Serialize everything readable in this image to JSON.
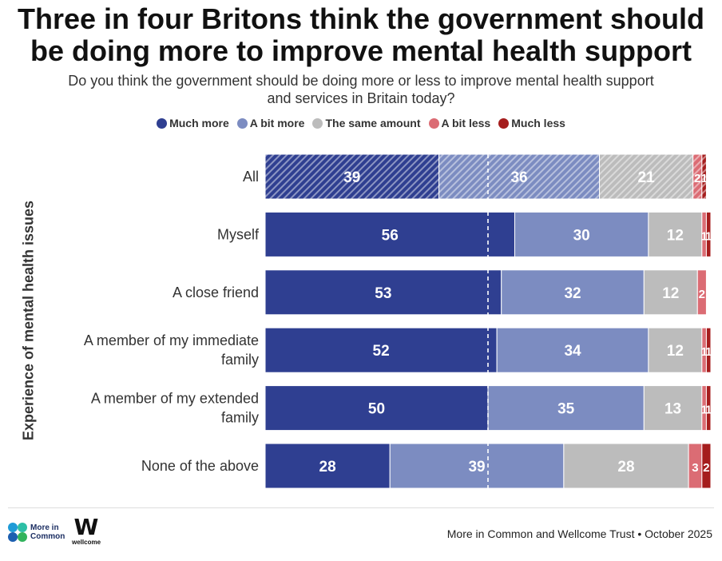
{
  "title_lines": [
    "Three in four Britons think the government should",
    "be doing more to improve mental health support"
  ],
  "subtitle_lines": [
    "Do you think the government should be doing more or less to improve mental health support",
    "and services in Britain today?"
  ],
  "legend": [
    {
      "label": "Much more",
      "color": "#2f3f91"
    },
    {
      "label": "A bit more",
      "color": "#7c8cc1"
    },
    {
      "label": "The same amount",
      "color": "#bcbcbc"
    },
    {
      "label": "A bit less",
      "color": "#db6c74"
    },
    {
      "label": "Much less",
      "color": "#a51d1d"
    }
  ],
  "y_axis_title": "Experience of mental health issues",
  "chart_data": {
    "type": "bar",
    "orientation": "horizontal",
    "stacked": true,
    "categories": [
      "All",
      "Myself",
      "A close friend",
      "A member of my immediate family",
      "A member of my extended family",
      "None of the above"
    ],
    "category_lines": [
      [
        "All"
      ],
      [
        "Myself"
      ],
      [
        "A close friend"
      ],
      [
        "A member of my immediate",
        "family"
      ],
      [
        "A member of my extended",
        "family"
      ],
      [
        "None of the above"
      ]
    ],
    "series": [
      {
        "name": "Much more",
        "color": "#2f3f91",
        "values": [
          39,
          56,
          53,
          52,
          50,
          28
        ]
      },
      {
        "name": "A bit more",
        "color": "#7c8cc1",
        "values": [
          36,
          30,
          32,
          34,
          35,
          39
        ]
      },
      {
        "name": "The same amount",
        "color": "#bcbcbc",
        "values": [
          21,
          12,
          12,
          12,
          13,
          28
        ]
      },
      {
        "name": "A bit less",
        "color": "#db6c74",
        "values": [
          2,
          1,
          2,
          1,
          1,
          3
        ]
      },
      {
        "name": "Much less",
        "color": "#a51d1d",
        "values": [
          1,
          1,
          0,
          1,
          1,
          2
        ]
      }
    ],
    "hatched_categories": [
      "All"
    ],
    "reference_line_value": 50,
    "xlim": [
      0,
      100
    ],
    "ylabel": "Experience of mental health issues",
    "legend_position": "top-center"
  },
  "footer": {
    "logo1_line1": "More in",
    "logo1_line2": "Common",
    "logo2_glyph": "W",
    "logo2_text": "wellcome",
    "source": "More in Common and Wellcome Trust • October 2025",
    "logo_colors": [
      "#1f9bd7",
      "#2dbfa6",
      "#1c5fb0",
      "#31b35c"
    ]
  }
}
